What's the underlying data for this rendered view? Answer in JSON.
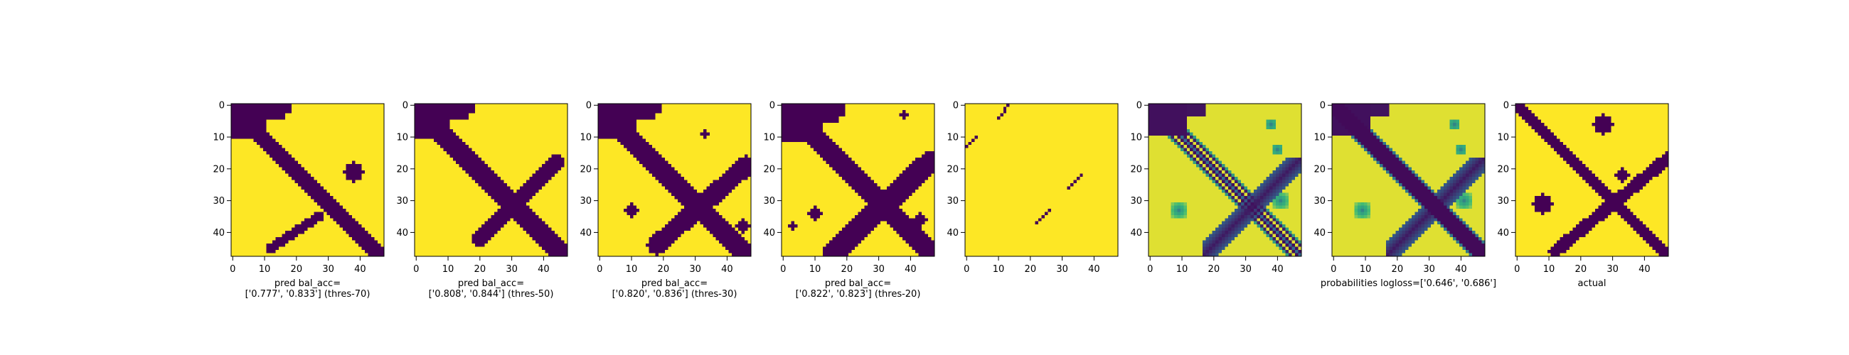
{
  "figure": {
    "background": "#ffffff"
  },
  "colormap": [
    "#440154",
    "#31688e",
    "#35b779",
    "#fde725"
  ],
  "axis": {
    "ticks": [
      0,
      10,
      20,
      30,
      40
    ],
    "extent": [
      0,
      48
    ]
  },
  "chart_data": [
    {
      "type": "heatmap",
      "encoding": "binary",
      "caption": [
        "pred bal_acc=",
        "['0.777', '0.833'] (thres-70)"
      ],
      "x_ticks": [
        0,
        10,
        20,
        30,
        40
      ],
      "y_ticks": [
        0,
        10,
        20,
        30,
        40
      ],
      "size": 48,
      "purple_features": [
        {
          "kind": "diag",
          "from": [
            1,
            0
          ],
          "to": [
            47,
            46
          ],
          "width": 5
        },
        {
          "kind": "block",
          "rows": [
            0,
            10
          ],
          "cols": [
            0,
            10
          ]
        },
        {
          "kind": "block",
          "rows": [
            0,
            4
          ],
          "cols": [
            8,
            18
          ]
        },
        {
          "kind": "line",
          "from": [
            21,
            48
          ],
          "to": [
            45,
            12
          ],
          "width": 3,
          "range": [
            0.55,
            1.0
          ]
        },
        {
          "kind": "blob",
          "center": [
            21,
            38
          ],
          "radius": 3
        }
      ]
    },
    {
      "type": "heatmap",
      "encoding": "binary",
      "caption": [
        "pred bal_acc=",
        "['0.808', '0.844'] (thres-50)"
      ],
      "x_ticks": [
        0,
        10,
        20,
        30,
        40
      ],
      "y_ticks": [
        0,
        10,
        20,
        30,
        40
      ],
      "size": 48,
      "purple_features": [
        {
          "kind": "diag",
          "from": [
            1,
            0
          ],
          "to": [
            47,
            46
          ],
          "width": 6
        },
        {
          "kind": "block",
          "rows": [
            0,
            10
          ],
          "cols": [
            0,
            10
          ]
        },
        {
          "kind": "block",
          "rows": [
            0,
            4
          ],
          "cols": [
            8,
            18
          ]
        },
        {
          "kind": "line",
          "from": [
            18,
            44
          ],
          "to": [
            42,
            20
          ],
          "width": 5,
          "range": [
            0.0,
            1.0
          ]
        },
        {
          "kind": "line",
          "from": [
            42,
            20
          ],
          "to": [
            41,
            22
          ],
          "width": 3,
          "range": [
            0.0,
            1.0
          ]
        }
      ]
    },
    {
      "type": "heatmap",
      "encoding": "binary",
      "caption": [
        "pred bal_acc=",
        "['0.820', '0.836'] (thres-30)"
      ],
      "x_ticks": [
        0,
        10,
        20,
        30,
        40
      ],
      "y_ticks": [
        0,
        10,
        20,
        30,
        40
      ],
      "size": 48,
      "purple_features": [
        {
          "kind": "diag",
          "from": [
            1,
            0
          ],
          "to": [
            47,
            46
          ],
          "width": 6
        },
        {
          "kind": "block",
          "rows": [
            0,
            10
          ],
          "cols": [
            0,
            11
          ]
        },
        {
          "kind": "block",
          "rows": [
            0,
            4
          ],
          "cols": [
            8,
            19
          ]
        },
        {
          "kind": "line",
          "from": [
            19,
            46
          ],
          "to": [
            44,
            18
          ],
          "width": 6,
          "range": [
            0.0,
            1.0
          ]
        },
        {
          "kind": "blob",
          "center": [
            33,
            10
          ],
          "radius": 2
        },
        {
          "kind": "blob",
          "center": [
            9,
            33
          ],
          "radius": 1
        },
        {
          "kind": "blob",
          "center": [
            38,
            45
          ],
          "radius": 2
        }
      ]
    },
    {
      "type": "heatmap",
      "encoding": "binary",
      "caption": [
        "pred bal_acc=",
        "['0.822', '0.823'] (thres-20)"
      ],
      "x_ticks": [
        0,
        10,
        20,
        30,
        40
      ],
      "y_ticks": [
        0,
        10,
        20,
        30,
        40
      ],
      "size": 48,
      "purple_features": [
        {
          "kind": "diag",
          "from": [
            0,
            0
          ],
          "to": [
            47,
            47
          ],
          "width": 7
        },
        {
          "kind": "block",
          "rows": [
            0,
            11
          ],
          "cols": [
            0,
            12
          ]
        },
        {
          "kind": "block",
          "rows": [
            0,
            5
          ],
          "cols": [
            8,
            19
          ]
        },
        {
          "kind": "line",
          "from": [
            18,
            46
          ],
          "to": [
            46,
            16
          ],
          "width": 7,
          "range": [
            0.0,
            1.0
          ]
        },
        {
          "kind": "blob",
          "center": [
            34,
            10
          ],
          "radius": 2
        },
        {
          "kind": "blob",
          "center": [
            38,
            3
          ],
          "radius": 1
        },
        {
          "kind": "blob",
          "center": [
            3,
            38
          ],
          "radius": 1
        },
        {
          "kind": "blob",
          "center": [
            36,
            43
          ],
          "radius": 2
        }
      ]
    },
    {
      "type": "heatmap",
      "encoding": "binary",
      "caption": [],
      "x_ticks": [
        0,
        10,
        20,
        30,
        40
      ],
      "y_ticks": [
        0,
        10,
        20,
        30,
        40
      ],
      "size": 48,
      "dark_segments": [
        {
          "from": [
            13,
            0
          ],
          "to": [
            10,
            3
          ]
        },
        {
          "from": [
            4,
            10
          ],
          "to": [
            0,
            13
          ]
        },
        {
          "from": [
            37,
            22
          ],
          "to": [
            33,
            26
          ]
        },
        {
          "from": [
            26,
            32
          ],
          "to": [
            22,
            36
          ]
        }
      ]
    },
    {
      "type": "heatmap",
      "encoding": "probability",
      "caption": [],
      "x_ticks": [
        0,
        10,
        20,
        30,
        40
      ],
      "y_ticks": [
        0,
        10,
        20,
        30,
        40
      ],
      "size": 48
    },
    {
      "type": "heatmap",
      "encoding": "probability",
      "caption": [
        "probabilities logloss=['0.646', '0.686']"
      ],
      "x_ticks": [
        0,
        10,
        20,
        30,
        40
      ],
      "y_ticks": [
        0,
        10,
        20,
        30,
        40
      ],
      "size": 48
    },
    {
      "type": "heatmap",
      "encoding": "binary",
      "caption": [
        "actual"
      ],
      "x_ticks": [
        0,
        10,
        20,
        30,
        40
      ],
      "y_ticks": [
        0,
        10,
        20,
        30,
        40
      ],
      "size": 48,
      "purple_features": [
        {
          "kind": "diag",
          "from": [
            0,
            0
          ],
          "to": [
            47,
            47
          ],
          "width": 4
        },
        {
          "kind": "line",
          "from": [
            17,
            47
          ],
          "to": [
            46,
            12
          ],
          "width": 4,
          "range": [
            0.0,
            1.0
          ]
        },
        {
          "kind": "blob",
          "center": [
            6,
            27
          ],
          "radius": 3
        },
        {
          "kind": "blob",
          "center": [
            31,
            8
          ],
          "radius": 3
        },
        {
          "kind": "blob",
          "center": [
            22,
            33
          ],
          "radius": 2
        }
      ]
    }
  ]
}
